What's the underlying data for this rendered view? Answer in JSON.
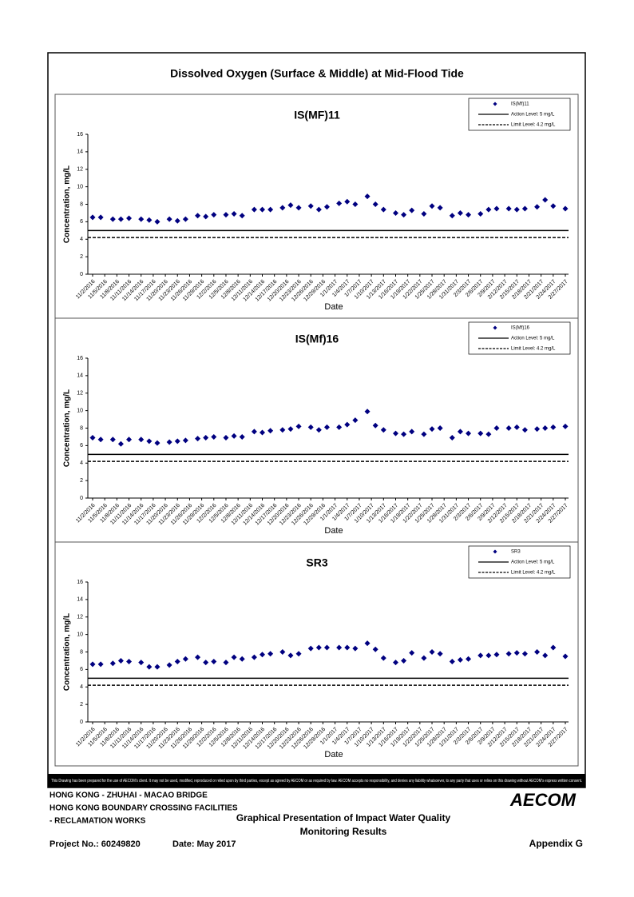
{
  "document": {
    "title": "Dissolved Oxygen (Surface & Middle) at Mid-Flood Tide",
    "disclaimer": "This Drawing has been prepared for the use of AECOM's client. It may not be used, modified, reproduced or relied upon by third parties, except as agreed by AECOM or as required by law. AECOM accepts no responsibility, and denies any liability whatsoever, to any party that uses or relies on this drawing without AECOM's express written consent.",
    "project_lines": [
      "HONG KONG - ZHUHAI - MACAO BRIDGE",
      "HONG KONG BOUNDARY CROSSING FACILITIES",
      "- RECLAMATION WORKS"
    ],
    "logo": "AECOM",
    "description": [
      "Graphical Presentation of Impact Water Quality",
      "Monitoring Results"
    ],
    "project_no": "Project No.: 60249820",
    "date": "Date: May 2017",
    "appendix": "Appendix G"
  },
  "chart_data": [
    {
      "type": "scatter",
      "title": "IS(MF)11",
      "x_label": "Date",
      "y_label": "Concentration, mg/L",
      "x": [
        "11/2/2016",
        "11/4/2016",
        "11/7/2016",
        "11/9/2016",
        "11/11/2016",
        "11/14/2016",
        "11/16/2016",
        "11/18/2016",
        "11/21/2016",
        "11/23/2016",
        "11/25/2016",
        "11/28/2016",
        "11/30/2016",
        "12/2/2016",
        "12/5/2016",
        "12/7/2016",
        "12/9/2016",
        "12/12/2016",
        "12/14/2016",
        "12/16/2016",
        "12/19/2016",
        "12/21/2016",
        "12/23/2016",
        "12/26/2016",
        "12/28/2016",
        "12/30/2016",
        "1/2/2017",
        "1/4/2017",
        "1/6/2017",
        "1/9/2017",
        "1/11/2017",
        "1/13/2017",
        "1/16/2017",
        "1/18/2017",
        "1/20/2017",
        "1/23/2017",
        "1/25/2017",
        "1/27/2017",
        "1/30/2017",
        "2/1/2017",
        "2/3/2017",
        "2/6/2017",
        "2/8/2017",
        "2/10/2017",
        "2/13/2017",
        "2/15/2017",
        "2/17/2017",
        "2/20/2017",
        "2/22/2017",
        "2/24/2017",
        "2/27/2017"
      ],
      "xlim": [
        "11/2/2016",
        "2/27/2017"
      ],
      "xticks": [
        "11/2/2016",
        "11/5/2016",
        "11/8/2016",
        "11/11/2016",
        "11/14/2016",
        "11/17/2016",
        "11/20/2016",
        "11/23/2016",
        "11/26/2016",
        "11/29/2016",
        "12/2/2016",
        "12/5/2016",
        "12/8/2016",
        "12/11/2016",
        "12/14/2016",
        "12/17/2016",
        "12/20/2016",
        "12/23/2016",
        "12/26/2016",
        "12/29/2016",
        "1/1/2017",
        "1/4/2017",
        "1/7/2017",
        "1/10/2017",
        "1/13/2017",
        "1/16/2017",
        "1/19/2017",
        "1/22/2017",
        "1/25/2017",
        "1/28/2017",
        "1/31/2017",
        "2/3/2017",
        "2/6/2017",
        "2/9/2017",
        "2/12/2017",
        "2/15/2017",
        "2/18/2017",
        "2/21/2017",
        "2/24/2017",
        "2/27/2017"
      ],
      "ylim": [
        0,
        16
      ],
      "yticks": [
        0,
        2,
        4,
        6,
        8,
        10,
        12,
        14,
        16
      ],
      "series": [
        {
          "name": "IS(Mf)11",
          "color": "#000080",
          "values": [
            6.5,
            6.5,
            6.3,
            6.3,
            6.4,
            6.3,
            6.2,
            6.0,
            6.3,
            6.1,
            6.3,
            6.7,
            6.6,
            6.8,
            6.8,
            6.9,
            6.7,
            7.4,
            7.4,
            7.4,
            7.6,
            7.9,
            7.6,
            7.8,
            7.4,
            7.7,
            8.1,
            8.3,
            8.0,
            8.9,
            8.0,
            7.4,
            7.0,
            6.8,
            7.3,
            6.9,
            7.8,
            7.6,
            6.7,
            7.0,
            6.8,
            6.9,
            7.4,
            7.5,
            7.5,
            7.4,
            7.5,
            7.7,
            8.5,
            7.8,
            7.5
          ]
        }
      ],
      "reference_lines": [
        {
          "name": "Action Level: 5 mg/L",
          "value": 5,
          "style": "solid"
        },
        {
          "name": "Limit Level: 4.2 mg/L",
          "value": 4.2,
          "style": "dashed"
        }
      ]
    },
    {
      "type": "scatter",
      "title": "IS(Mf)16",
      "x_label": "Date",
      "y_label": "Concentration, mg/L",
      "x": [
        "11/2/2016",
        "11/4/2016",
        "11/7/2016",
        "11/9/2016",
        "11/11/2016",
        "11/14/2016",
        "11/16/2016",
        "11/18/2016",
        "11/21/2016",
        "11/23/2016",
        "11/25/2016",
        "11/28/2016",
        "11/30/2016",
        "12/2/2016",
        "12/5/2016",
        "12/7/2016",
        "12/9/2016",
        "12/12/2016",
        "12/14/2016",
        "12/16/2016",
        "12/19/2016",
        "12/21/2016",
        "12/23/2016",
        "12/26/2016",
        "12/28/2016",
        "12/30/2016",
        "1/2/2017",
        "1/4/2017",
        "1/6/2017",
        "1/9/2017",
        "1/11/2017",
        "1/13/2017",
        "1/16/2017",
        "1/18/2017",
        "1/20/2017",
        "1/23/2017",
        "1/25/2017",
        "1/27/2017",
        "1/30/2017",
        "2/1/2017",
        "2/3/2017",
        "2/6/2017",
        "2/8/2017",
        "2/10/2017",
        "2/13/2017",
        "2/15/2017",
        "2/17/2017",
        "2/20/2017",
        "2/22/2017",
        "2/24/2017",
        "2/27/2017"
      ],
      "xlim": [
        "11/2/2016",
        "2/27/2017"
      ],
      "xticks": [
        "11/2/2016",
        "11/5/2016",
        "11/8/2016",
        "11/11/2016",
        "11/14/2016",
        "11/17/2016",
        "11/20/2016",
        "11/23/2016",
        "11/26/2016",
        "11/29/2016",
        "12/2/2016",
        "12/5/2016",
        "12/8/2016",
        "12/11/2016",
        "12/14/2016",
        "12/17/2016",
        "12/20/2016",
        "12/23/2016",
        "12/26/2016",
        "12/29/2016",
        "1/1/2017",
        "1/4/2017",
        "1/7/2017",
        "1/10/2017",
        "1/13/2017",
        "1/16/2017",
        "1/19/2017",
        "1/22/2017",
        "1/25/2017",
        "1/28/2017",
        "1/31/2017",
        "2/3/2017",
        "2/6/2017",
        "2/9/2017",
        "2/12/2017",
        "2/15/2017",
        "2/18/2017",
        "2/21/2017",
        "2/24/2017",
        "2/27/2017"
      ],
      "ylim": [
        0,
        16
      ],
      "yticks": [
        0,
        2,
        4,
        6,
        8,
        10,
        12,
        14,
        16
      ],
      "series": [
        {
          "name": "IS(Mf)16",
          "color": "#000080",
          "values": [
            6.9,
            6.7,
            6.7,
            6.2,
            6.7,
            6.7,
            6.5,
            6.3,
            6.4,
            6.5,
            6.6,
            6.8,
            6.9,
            7.0,
            6.9,
            7.1,
            7.0,
            7.6,
            7.5,
            7.7,
            7.8,
            7.9,
            8.2,
            8.1,
            7.8,
            8.1,
            8.1,
            8.4,
            8.9,
            9.9,
            8.3,
            7.8,
            7.4,
            7.3,
            7.6,
            7.3,
            7.9,
            8.0,
            6.9,
            7.6,
            7.4,
            7.4,
            7.3,
            8.0,
            8.0,
            8.1,
            7.8,
            7.9,
            8.0,
            8.1,
            8.2
          ]
        }
      ],
      "reference_lines": [
        {
          "name": "Action Level: 5 mg/L",
          "value": 5,
          "style": "solid"
        },
        {
          "name": "Limit Level: 4.2 mg/L",
          "value": 4.2,
          "style": "dashed"
        }
      ]
    },
    {
      "type": "scatter",
      "title": "SR3",
      "x_label": "Date",
      "y_label": "Concentration, mg/L",
      "x": [
        "11/2/2016",
        "11/4/2016",
        "11/7/2016",
        "11/9/2016",
        "11/11/2016",
        "11/14/2016",
        "11/16/2016",
        "11/18/2016",
        "11/21/2016",
        "11/23/2016",
        "11/25/2016",
        "11/28/2016",
        "11/30/2016",
        "12/2/2016",
        "12/5/2016",
        "12/7/2016",
        "12/9/2016",
        "12/12/2016",
        "12/14/2016",
        "12/16/2016",
        "12/19/2016",
        "12/21/2016",
        "12/23/2016",
        "12/26/2016",
        "12/28/2016",
        "12/30/2016",
        "1/2/2017",
        "1/4/2017",
        "1/6/2017",
        "1/9/2017",
        "1/11/2017",
        "1/13/2017",
        "1/16/2017",
        "1/18/2017",
        "1/20/2017",
        "1/23/2017",
        "1/25/2017",
        "1/27/2017",
        "1/30/2017",
        "2/1/2017",
        "2/3/2017",
        "2/6/2017",
        "2/8/2017",
        "2/10/2017",
        "2/13/2017",
        "2/15/2017",
        "2/17/2017",
        "2/20/2017",
        "2/22/2017",
        "2/24/2017",
        "2/27/2017"
      ],
      "xlim": [
        "11/2/2016",
        "2/27/2017"
      ],
      "xticks": [
        "11/2/2016",
        "11/5/2016",
        "11/8/2016",
        "11/11/2016",
        "11/14/2016",
        "11/17/2016",
        "11/20/2016",
        "11/23/2016",
        "11/26/2016",
        "11/29/2016",
        "12/2/2016",
        "12/5/2016",
        "12/8/2016",
        "12/11/2016",
        "12/14/2016",
        "12/17/2016",
        "12/20/2016",
        "12/23/2016",
        "12/26/2016",
        "12/29/2016",
        "1/1/2017",
        "1/4/2017",
        "1/7/2017",
        "1/10/2017",
        "1/13/2017",
        "1/16/2017",
        "1/19/2017",
        "1/22/2017",
        "1/25/2017",
        "1/28/2017",
        "1/31/2017",
        "2/3/2017",
        "2/6/2017",
        "2/9/2017",
        "2/12/2017",
        "2/15/2017",
        "2/18/2017",
        "2/21/2017",
        "2/24/2017",
        "2/27/2017"
      ],
      "ylim": [
        0,
        16
      ],
      "yticks": [
        0,
        2,
        4,
        6,
        8,
        10,
        12,
        14,
        16
      ],
      "series": [
        {
          "name": "SR3",
          "color": "#000080",
          "values": [
            6.6,
            6.6,
            6.7,
            7.0,
            6.9,
            6.8,
            6.3,
            6.3,
            6.5,
            6.9,
            7.2,
            7.4,
            6.8,
            6.9,
            6.8,
            7.4,
            7.2,
            7.4,
            7.7,
            7.8,
            8.0,
            7.6,
            7.8,
            8.4,
            8.5,
            8.5,
            8.5,
            8.5,
            8.4,
            9.0,
            8.3,
            7.3,
            6.8,
            7.0,
            7.9,
            7.3,
            8.0,
            7.8,
            6.9,
            7.1,
            7.2,
            7.6,
            7.6,
            7.7,
            7.8,
            7.9,
            7.8,
            8.0,
            7.6,
            8.5,
            7.5
          ]
        }
      ],
      "reference_lines": [
        {
          "name": "Action Level: 5 mg/L",
          "value": 5,
          "style": "solid"
        },
        {
          "name": "Limit Level: 4.2 mg/L",
          "value": 4.2,
          "style": "dashed"
        }
      ]
    }
  ]
}
